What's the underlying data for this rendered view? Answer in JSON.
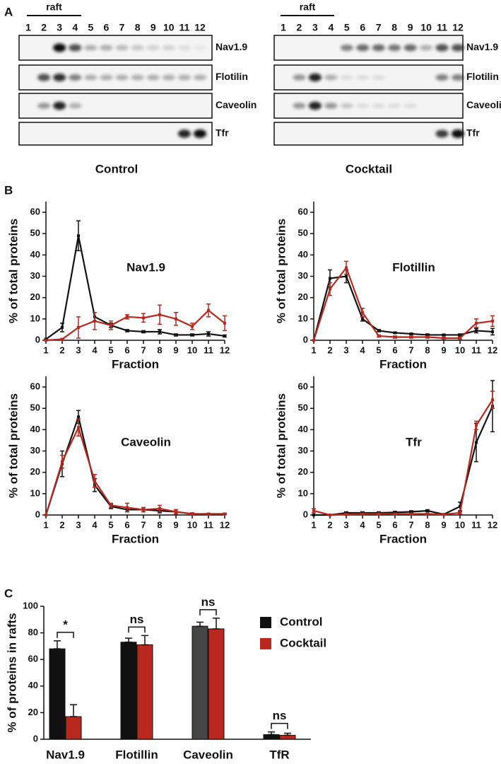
{
  "panel_labels": [
    "A",
    "B",
    "C"
  ],
  "blots": {
    "raft": "raft",
    "lanes": [
      "1",
      "2",
      "3",
      "4",
      "5",
      "6",
      "7",
      "8",
      "9",
      "10",
      "11",
      "12"
    ],
    "proteins": [
      "Nav1.9",
      "Flotilin",
      "Caveolin",
      "Tfr"
    ],
    "conditions": [
      "Control",
      "Cocktail"
    ]
  },
  "chart_data": [
    {
      "type": "line",
      "title": "Nav1.9",
      "x_label": "Fraction",
      "y_label": "% of total proteins",
      "x": [
        1,
        2,
        3,
        4,
        5,
        6,
        7,
        8,
        9,
        10,
        11,
        12
      ],
      "xlim": [
        1,
        12
      ],
      "xticks": [
        1,
        2,
        3,
        4,
        5,
        6,
        7,
        8,
        9,
        10,
        11,
        12
      ],
      "ylim": [
        0,
        65
      ],
      "yticks": [
        0,
        10,
        20,
        30,
        40,
        50,
        60
      ],
      "series": [
        {
          "name": "Control",
          "color": "#111111",
          "values": [
            0.5,
            6,
            49,
            11,
            7,
            4.5,
            4,
            4,
            2.5,
            2.5,
            3,
            2
          ],
          "errors": [
            0,
            2,
            7,
            2,
            1,
            0.5,
            0.5,
            1,
            0.5,
            0.5,
            1,
            0.5
          ]
        },
        {
          "name": "Cocktail",
          "color": "#b8281e",
          "values": [
            0,
            0.5,
            6,
            9,
            7,
            11,
            10.5,
            12,
            10,
            6.5,
            14,
            8
          ],
          "errors": [
            0,
            0.3,
            5,
            4,
            2,
            1,
            2,
            4.5,
            3,
            1.5,
            3,
            3.5
          ]
        }
      ]
    },
    {
      "type": "line",
      "title": "Flotillin",
      "x_label": "Fraction",
      "y_label": "% of total proteins",
      "x": [
        1,
        2,
        3,
        4,
        5,
        6,
        7,
        8,
        9,
        10,
        11,
        12
      ],
      "xlim": [
        1,
        12
      ],
      "xticks": [
        1,
        2,
        3,
        4,
        5,
        6,
        7,
        8,
        9,
        10,
        11,
        12
      ],
      "ylim": [
        0,
        65
      ],
      "yticks": [
        0,
        10,
        20,
        30,
        40,
        50,
        60
      ],
      "series": [
        {
          "name": "Control",
          "color": "#111111",
          "values": [
            0,
            29,
            30,
            10,
            4.5,
            3.5,
            3,
            2.5,
            2.5,
            2.5,
            4.5,
            4
          ],
          "errors": [
            0,
            4,
            3,
            1,
            0.5,
            0.3,
            0.3,
            0.5,
            0.3,
            0.5,
            1,
            1.5
          ]
        },
        {
          "name": "Cocktail",
          "color": "#b8281e",
          "values": [
            0,
            24,
            34,
            13,
            2,
            1.5,
            1.5,
            1.5,
            1,
            1,
            8,
            9
          ],
          "errors": [
            0,
            3,
            3,
            2,
            0.5,
            0.5,
            0.5,
            0.5,
            0.5,
            0.5,
            2,
            2.5
          ]
        }
      ]
    },
    {
      "type": "line",
      "title": "Caveolin",
      "x_label": "Fraction",
      "y_label": "% of total proteins",
      "x": [
        1,
        2,
        3,
        4,
        5,
        6,
        7,
        8,
        9,
        10,
        11,
        12
      ],
      "xlim": [
        1,
        12
      ],
      "xticks": [
        1,
        2,
        3,
        4,
        5,
        6,
        7,
        8,
        9,
        10,
        11,
        12
      ],
      "ylim": [
        0,
        65
      ],
      "yticks": [
        0,
        10,
        20,
        30,
        40,
        50,
        60
      ],
      "series": [
        {
          "name": "Control",
          "color": "#111111",
          "values": [
            0,
            24,
            46,
            14,
            4,
            2.5,
            2.5,
            2,
            1.5,
            0.5,
            0.5,
            0.5
          ],
          "errors": [
            0,
            6,
            3,
            3,
            1,
            1,
            1,
            1,
            1,
            0.5,
            0.3,
            0.3
          ]
        },
        {
          "name": "Cocktail",
          "color": "#b8281e",
          "values": [
            0,
            25,
            41,
            16,
            4.5,
            3.5,
            2.5,
            3,
            1.5,
            0.5,
            0.5,
            0.5
          ],
          "errors": [
            0,
            3,
            4,
            3,
            1,
            2,
            1,
            1.5,
            1,
            0.5,
            0.3,
            0.3
          ]
        }
      ]
    },
    {
      "type": "line",
      "title": "Tfr",
      "x_label": "Fraction",
      "y_label": "% of total proteins",
      "x": [
        1,
        2,
        3,
        4,
        5,
        6,
        7,
        8,
        9,
        10,
        11,
        12
      ],
      "xlim": [
        1,
        12
      ],
      "xticks": [
        1,
        2,
        3,
        4,
        5,
        6,
        7,
        8,
        9,
        10,
        11,
        12
      ],
      "ylim": [
        0,
        65
      ],
      "yticks": [
        0,
        10,
        20,
        30,
        40,
        50,
        60
      ],
      "series": [
        {
          "name": "Control",
          "color": "#111111",
          "values": [
            0,
            0,
            1,
            1,
            1,
            1.2,
            1.5,
            2,
            0.3,
            4,
            34,
            51
          ],
          "errors": [
            0,
            0,
            0.5,
            0.5,
            0.5,
            0.5,
            0.5,
            0.5,
            0.3,
            2,
            9,
            12
          ]
        },
        {
          "name": "Cocktail",
          "color": "#b8281e",
          "values": [
            2,
            0,
            0.3,
            0.5,
            0.5,
            0.5,
            0.5,
            0.5,
            0.3,
            1,
            42,
            54
          ],
          "errors": [
            1,
            0,
            0.3,
            0.3,
            0.3,
            0.3,
            0.3,
            0.3,
            0.3,
            0.5,
            2,
            4
          ]
        }
      ]
    },
    {
      "type": "bar",
      "y_label": "% of proteins in rafts",
      "categories": [
        "Nav1.9",
        "Flotillin",
        "Caveolin",
        "TfR"
      ],
      "ylim": [
        0,
        100
      ],
      "yticks": [
        0,
        20,
        40,
        60,
        80,
        100
      ],
      "legend": "right",
      "significance": [
        "*",
        "ns",
        "ns",
        "ns"
      ],
      "series": [
        {
          "name": "Control",
          "color": "#111111",
          "colors": [
            "#111111",
            "#111111",
            "#454545",
            "#111111"
          ],
          "values": [
            68,
            73,
            85,
            3.5
          ],
          "errors": [
            6,
            3,
            3,
            2
          ]
        },
        {
          "name": "Cocktail",
          "color": "#b8281e",
          "values": [
            17,
            71,
            83,
            3
          ],
          "errors": [
            9,
            7,
            8,
            1.5
          ]
        }
      ]
    }
  ]
}
